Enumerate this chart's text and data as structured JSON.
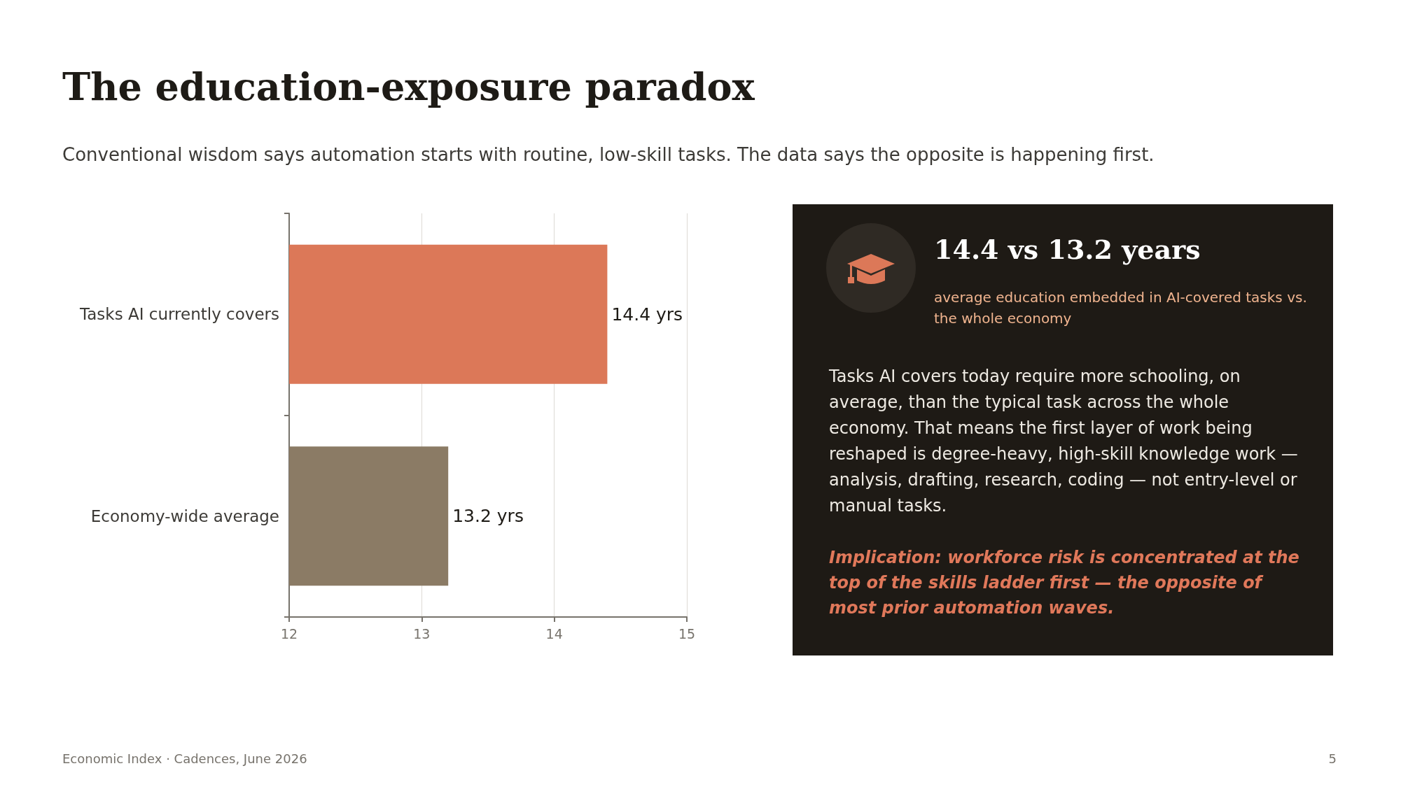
{
  "chart_data": [
    {
      "type": "bar",
      "orientation": "horizontal",
      "title": "The education-exposure paradox",
      "subtitle": "Conventional wisdom says automation starts with routine, low-skill tasks. The data says the opposite is happening first.",
      "categories": [
        "Tasks AI currently covers",
        "Economy-wide average"
      ],
      "values": [
        14.4,
        13.2
      ],
      "colors": [
        "#dc7858",
        "#8b7b65"
      ],
      "value_labels": [
        "14.4 yrs",
        "13.2 yrs"
      ],
      "xlim": [
        12,
        15
      ],
      "xticks": [
        12,
        13,
        14,
        15
      ],
      "grid": "x",
      "annotations": [
        "Economic Index · Cadences, June 2026",
        "5"
      ]
    },
    {
      "type": "other",
      "title": "14.4 vs 13.2 years",
      "subtitle": "average education embedded in AI-covered tasks vs. the whole economy",
      "annotations": [
        "Tasks AI covers today require more schooling, on average, than the typical task across the whole economy. That means the first layer of work being reshaped is degree-heavy, high-skill knowledge work — analysis, drafting, research, coding — not entry-level or manual tasks.",
        "Implication: workforce risk is concentrated at the top of the skills ladder first — the opposite of most prior automation waves."
      ]
    }
  ]
}
